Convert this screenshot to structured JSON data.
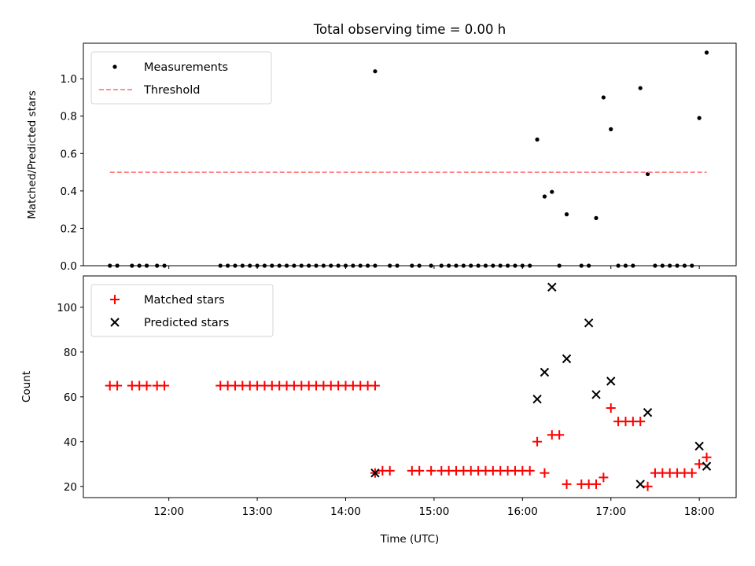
{
  "chart_data": [
    {
      "type": "scatter",
      "title": "Total observing time = 0.00 h",
      "xlabel": "",
      "ylabel": "Matched/Predicted stars",
      "ylim": [
        0,
        1.19
      ],
      "yticks": [
        0.0,
        0.2,
        0.4,
        0.6,
        0.8,
        1.0
      ],
      "legend_position": "top-left",
      "series": [
        {
          "name": "Measurements",
          "marker": "dot",
          "color": "#000000",
          "x": [
            "11:20",
            "11:25",
            "11:35",
            "11:40",
            "11:45",
            "11:52",
            "11:57",
            "12:35",
            "12:40",
            "12:45",
            "12:50",
            "12:55",
            "13:00",
            "13:05",
            "13:10",
            "13:15",
            "13:20",
            "13:25",
            "13:30",
            "13:35",
            "13:40",
            "13:45",
            "13:50",
            "13:55",
            "14:00",
            "14:05",
            "14:10",
            "14:15",
            "14:20",
            "14:20",
            "14:30",
            "14:35",
            "14:45",
            "14:50",
            "14:58",
            "15:05",
            "15:10",
            "15:15",
            "15:20",
            "15:25",
            "15:30",
            "15:35",
            "15:40",
            "15:45",
            "15:50",
            "15:55",
            "16:00",
            "16:05",
            "16:10",
            "16:15",
            "16:20",
            "16:25",
            "16:30",
            "16:40",
            "16:45",
            "16:50",
            "16:55",
            "17:00",
            "17:05",
            "17:10",
            "17:15",
            "17:20",
            "17:25",
            "17:30",
            "17:35",
            "17:40",
            "17:45",
            "17:50",
            "17:55",
            "18:00",
            "18:05"
          ],
          "y": [
            0,
            0,
            0,
            0,
            0,
            0,
            0,
            0,
            0,
            0,
            0,
            0,
            0,
            0,
            0,
            0,
            0,
            0,
            0,
            0,
            0,
            0,
            0,
            0,
            0,
            0,
            0,
            0,
            0,
            1.04,
            0,
            0,
            0,
            0,
            0,
            0,
            0,
            0,
            0,
            0,
            0,
            0,
            0,
            0,
            0,
            0,
            0,
            0,
            0.675,
            0.37,
            0.395,
            0,
            0.275,
            0,
            0,
            0.255,
            0.9,
            0.73,
            0,
            0,
            0,
            0.95,
            0.49,
            0,
            0,
            0,
            0,
            0,
            0,
            0.79,
            1.14
          ]
        },
        {
          "name": "Threshold",
          "style": "dashed",
          "color": "#ff8080",
          "x": [
            "11:20",
            "18:05"
          ],
          "y": [
            0.5,
            0.5
          ]
        }
      ]
    },
    {
      "type": "scatter",
      "title": "",
      "xlabel": "Time (UTC)",
      "ylabel": "Count",
      "ylim": [
        15,
        114
      ],
      "yticks": [
        20,
        40,
        60,
        80,
        100
      ],
      "xticks": [
        "12:00",
        "13:00",
        "14:00",
        "15:00",
        "16:00",
        "17:00",
        "18:00"
      ],
      "xlim": [
        "11:02",
        "18:25"
      ],
      "legend_position": "top-left",
      "series": [
        {
          "name": "Matched stars",
          "marker": "plus",
          "color": "#ff0000",
          "x": [
            "11:20",
            "11:25",
            "11:35",
            "11:40",
            "11:45",
            "11:52",
            "11:57",
            "12:35",
            "12:40",
            "12:45",
            "12:50",
            "12:55",
            "13:00",
            "13:05",
            "13:10",
            "13:15",
            "13:20",
            "13:25",
            "13:30",
            "13:35",
            "13:40",
            "13:45",
            "13:50",
            "13:55",
            "14:00",
            "14:05",
            "14:10",
            "14:15",
            "14:20",
            "14:20",
            "14:25",
            "14:30",
            "14:45",
            "14:50",
            "14:58",
            "15:05",
            "15:10",
            "15:15",
            "15:20",
            "15:25",
            "15:30",
            "15:35",
            "15:40",
            "15:45",
            "15:50",
            "15:55",
            "16:00",
            "16:05",
            "16:10",
            "16:15",
            "16:20",
            "16:25",
            "16:30",
            "16:40",
            "16:45",
            "16:50",
            "16:55",
            "17:00",
            "17:05",
            "17:10",
            "17:15",
            "17:20",
            "17:25",
            "17:30",
            "17:35",
            "17:40",
            "17:45",
            "17:50",
            "17:55",
            "18:00",
            "18:05"
          ],
          "y": [
            65,
            65,
            65,
            65,
            65,
            65,
            65,
            65,
            65,
            65,
            65,
            65,
            65,
            65,
            65,
            65,
            65,
            65,
            65,
            65,
            65,
            65,
            65,
            65,
            65,
            65,
            65,
            65,
            65,
            26,
            27,
            27,
            27,
            27,
            27,
            27,
            27,
            27,
            27,
            27,
            27,
            27,
            27,
            27,
            27,
            27,
            27,
            27,
            40,
            26,
            43,
            43,
            21,
            21,
            21,
            21,
            24,
            55,
            49,
            49,
            49,
            49,
            20,
            26,
            26,
            26,
            26,
            26,
            26,
            30,
            33
          ]
        },
        {
          "name": "Predicted stars",
          "marker": "x",
          "color": "#000000",
          "x": [
            "14:20",
            "16:10",
            "16:15",
            "16:20",
            "16:30",
            "16:45",
            "16:50",
            "17:00",
            "17:20",
            "17:25",
            "18:00",
            "18:05"
          ],
          "y": [
            26,
            59,
            71,
            109,
            77,
            93,
            61,
            67,
            21,
            53,
            38,
            29
          ]
        }
      ]
    }
  ]
}
